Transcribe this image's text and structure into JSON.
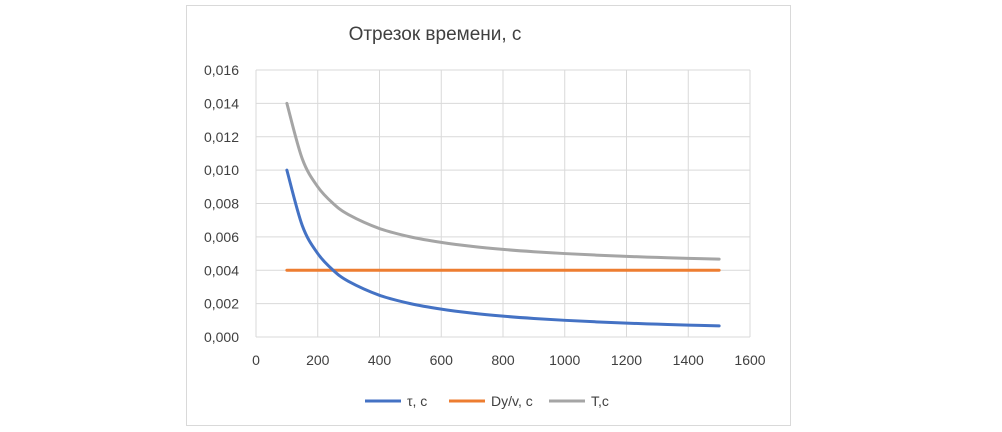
{
  "chart_data": {
    "type": "line",
    "title": "Отрезок времени, с",
    "xlabel": "",
    "ylabel": "",
    "xlim": [
      0,
      1600
    ],
    "ylim": [
      0,
      0.016
    ],
    "x_ticks": [
      "0",
      "200",
      "400",
      "600",
      "800",
      "1000",
      "1200",
      "1400",
      "1600"
    ],
    "y_ticks": [
      "0,000",
      "0,002",
      "0,004",
      "0,006",
      "0,008",
      "0,010",
      "0,012",
      "0,014",
      "0,016"
    ],
    "grid": true,
    "legend_position": "bottom",
    "x": [
      100,
      150,
      200,
      250,
      300,
      400,
      500,
      600,
      700,
      800,
      900,
      1000,
      1100,
      1200,
      1300,
      1400,
      1500
    ],
    "series": [
      {
        "name": "τ, с",
        "color": "#4472C4",
        "values": [
          0.01,
          0.00667,
          0.005,
          0.004,
          0.00333,
          0.0025,
          0.002,
          0.00167,
          0.00143,
          0.00125,
          0.00111,
          0.001,
          0.00091,
          0.00083,
          0.00077,
          0.00071,
          0.00067
        ]
      },
      {
        "name": "Dy/v, с",
        "color": "#ED7D31",
        "values": [
          0.004,
          0.004,
          0.004,
          0.004,
          0.004,
          0.004,
          0.004,
          0.004,
          0.004,
          0.004,
          0.004,
          0.004,
          0.004,
          0.004,
          0.004,
          0.004,
          0.004
        ]
      },
      {
        "name": "T,c",
        "color": "#A5A5A5",
        "values": [
          0.014,
          0.01067,
          0.009,
          0.008,
          0.00733,
          0.0065,
          0.006,
          0.00567,
          0.00543,
          0.00525,
          0.00511,
          0.005,
          0.00491,
          0.00483,
          0.00477,
          0.00471,
          0.00467
        ]
      }
    ]
  }
}
